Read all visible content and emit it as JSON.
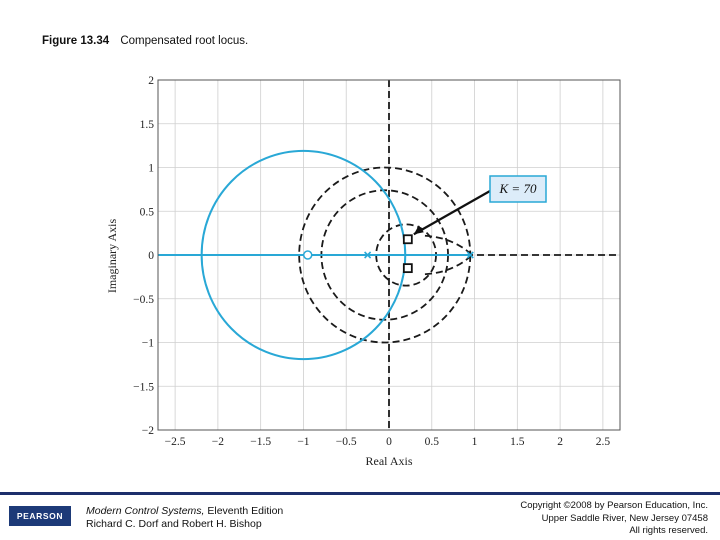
{
  "figure": {
    "number": "Figure 13.34",
    "caption": "Compensated root locus."
  },
  "footer": {
    "book_title": "Modern Control Systems,",
    "book_edition": " Eleventh Edition",
    "authors": "Richard C. Dorf and Robert H. Bishop",
    "copyright_line1": "Copyright ©2008 by Pearson Education, Inc.",
    "copyright_line2": "Upper Saddle River, New Jersey 07458",
    "copyright_line3": "All rights reserved.",
    "logo_text": "PEARSON"
  },
  "colors": {
    "locus": "#29a8d6",
    "dashed": "#1a1a1a",
    "grid": "#cfcfcf",
    "callout_bg": "#dcecf9",
    "callout_border": "#29a8d6",
    "footer_bar": "#1d2f6b"
  },
  "chart_data": {
    "type": "scatter",
    "title": "",
    "xlabel": "Real Axis",
    "ylabel": "Imaginary Axis",
    "xlim": [
      -2.7,
      2.7
    ],
    "ylim": [
      -2,
      2
    ],
    "grid": true,
    "xticks": [
      -2.5,
      -2,
      -1.5,
      -1,
      -0.5,
      0,
      0.5,
      1,
      1.5,
      2,
      2.5
    ],
    "xtick_labels": [
      "−2.5",
      "−2",
      "−1.5",
      "−1",
      "−0.5",
      "0",
      "0.5",
      "1",
      "1.5",
      "2",
      "2.5"
    ],
    "yticks": [
      2,
      1.5,
      1,
      0.5,
      0,
      -0.5,
      -1,
      -1.5,
      -2
    ],
    "ytick_labels": [
      "2",
      "1.5",
      "1",
      "0.5",
      "0",
      "−0.5",
      "−1",
      "−1.5",
      "−2"
    ],
    "locus_circle": {
      "center": [
        -1.0,
        0
      ],
      "radius": 1.19
    },
    "locus_real_segment": [
      -2.7,
      0.95
    ],
    "dashed_circles": [
      {
        "center": [
          -0.05,
          0
        ],
        "radius": 1.0
      },
      {
        "center": [
          -0.05,
          0
        ],
        "radius": 0.74
      },
      {
        "center": [
          0.2,
          0
        ],
        "radius": 0.35
      }
    ],
    "dashed_lobe_tip": [
      0.97,
      0
    ],
    "open_loop_zeros": [
      [
        -0.95,
        0
      ]
    ],
    "open_loop_poles": [
      [
        -0.25,
        0
      ],
      [
        0.95,
        0
      ]
    ],
    "closed_loop_poles": [
      [
        0.22,
        0.18
      ],
      [
        0.22,
        -0.15
      ]
    ],
    "annotation": {
      "text": "K = 70",
      "points_to": [
        0.22,
        0.18
      ]
    }
  }
}
